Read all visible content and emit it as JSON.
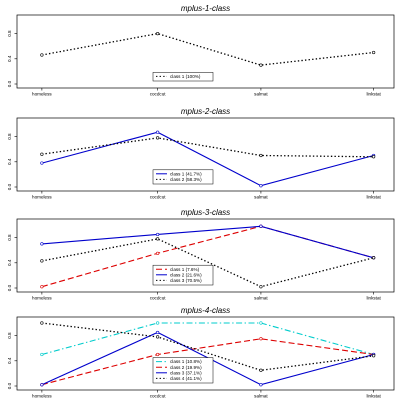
{
  "chart_data": [
    {
      "type": "line",
      "title": "mplus-1-class",
      "categories": [
        "homeless",
        "cocdcut",
        "salmat",
        "linkstat"
      ],
      "ylim": [
        0,
        1
      ],
      "yticks": [
        "0.0",
        "0.4",
        "0.8"
      ],
      "grid": false,
      "legend": "center",
      "series": [
        {
          "name": "class 1 (100%)",
          "values": [
            0.46,
            0.8,
            0.3,
            0.5
          ],
          "color": "#000000",
          "dash": "dot"
        }
      ]
    },
    {
      "type": "line",
      "title": "mplus-2-class",
      "categories": [
        "homeless",
        "cocdcut",
        "salmat",
        "linkstat"
      ],
      "ylim": [
        0,
        1
      ],
      "yticks": [
        "0.0",
        "0.4",
        "0.8"
      ],
      "grid": false,
      "legend": "center",
      "series": [
        {
          "name": "class 1 (41.7%)",
          "values": [
            0.38,
            0.87,
            0.02,
            0.5
          ],
          "color": "#0000cc",
          "dash": "solid"
        },
        {
          "name": "class 2 (58.3%)",
          "values": [
            0.52,
            0.78,
            0.5,
            0.48
          ],
          "color": "#000000",
          "dash": "dot"
        }
      ]
    },
    {
      "type": "line",
      "title": "mplus-3-class",
      "categories": [
        "homeless",
        "cocdcut",
        "salmat",
        "linkstat"
      ],
      "ylim": [
        0,
        1
      ],
      "yticks": [
        "0.0",
        "0.4",
        "0.8"
      ],
      "grid": false,
      "legend": "center",
      "series": [
        {
          "name": "class 1 (7.6%)",
          "values": [
            0.02,
            0.55,
            0.98,
            0.48
          ],
          "color": "#dd0000",
          "dash": "longdash"
        },
        {
          "name": "class 2 (21.6%)",
          "values": [
            0.7,
            0.85,
            0.98,
            0.48
          ],
          "color": "#0000cc",
          "dash": "solid"
        },
        {
          "name": "class 3 (70.5%)",
          "values": [
            0.43,
            0.78,
            0.02,
            0.48
          ],
          "color": "#000000",
          "dash": "dot"
        }
      ]
    },
    {
      "type": "line",
      "title": "mplus-4-class",
      "categories": [
        "homeless",
        "cocdcut",
        "salmat",
        "linkstat"
      ],
      "ylim": [
        0,
        1
      ],
      "yticks": [
        "0.0",
        "0.4",
        "0.8"
      ],
      "grid": false,
      "legend": "center",
      "series": [
        {
          "name": "class 1 (10.8%)",
          "values": [
            0.5,
            1.0,
            1.0,
            0.5
          ],
          "color": "#00cccc",
          "dash": "dashdot"
        },
        {
          "name": "class 2 (19.9%)",
          "values": [
            0.02,
            0.5,
            0.75,
            0.5
          ],
          "color": "#dd0000",
          "dash": "longdash"
        },
        {
          "name": "class 3 (37.1%)",
          "values": [
            0.02,
            0.85,
            0.02,
            0.5
          ],
          "color": "#0000cc",
          "dash": "solid"
        },
        {
          "name": "class 4 (41.1%)",
          "values": [
            1.0,
            0.78,
            0.25,
            0.48
          ],
          "color": "#000000",
          "dash": "dot"
        }
      ]
    }
  ]
}
